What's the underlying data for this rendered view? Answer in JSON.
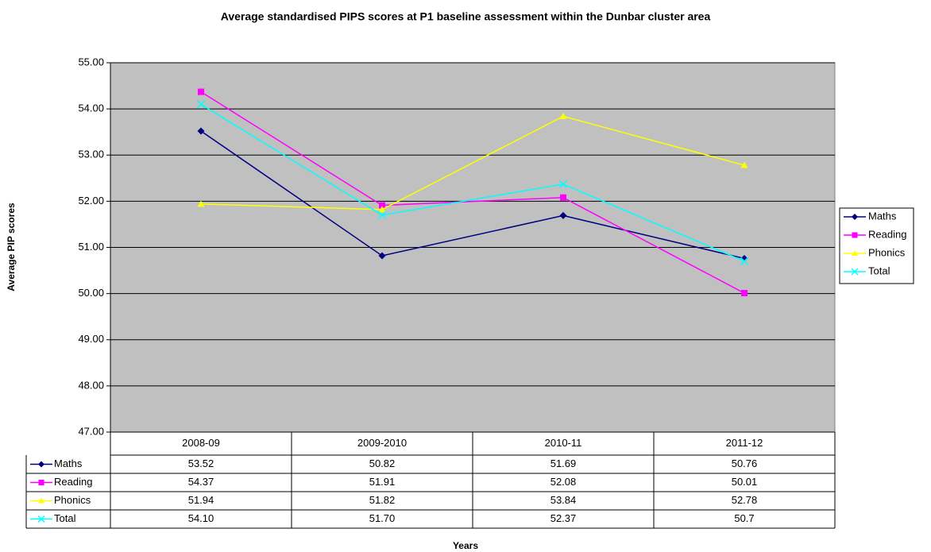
{
  "chart_data": {
    "type": "line",
    "title": "Average standardised PIPS scores at P1 baseline assessment within the Dunbar cluster area",
    "x_label": "Years",
    "y_label": "Average PIP scores",
    "categories": [
      "2008-09",
      "2009-2010",
      "2010-11",
      "2011-12"
    ],
    "series": [
      {
        "name": "Maths",
        "color": "#000080",
        "marker": "diamond",
        "values": [
          53.52,
          50.82,
          51.69,
          50.76
        ]
      },
      {
        "name": "Reading",
        "color": "#ff00ff",
        "marker": "square",
        "values": [
          54.37,
          51.91,
          52.08,
          50.01
        ]
      },
      {
        "name": "Phonics",
        "color": "#ffff00",
        "marker": "triangle",
        "values": [
          51.94,
          51.82,
          53.84,
          52.78
        ]
      },
      {
        "name": "Total",
        "color": "#00ffff",
        "marker": "x",
        "values": [
          54.1,
          51.7,
          52.37,
          50.7
        ],
        "value_labels": [
          "54.10",
          "51.70",
          "52.37",
          "50.7"
        ]
      }
    ],
    "ylim": [
      47,
      55
    ],
    "yticks": [
      {
        "value": 47,
        "label": "47.00"
      },
      {
        "value": 48,
        "label": "48.00"
      },
      {
        "value": 49,
        "label": "49.00"
      },
      {
        "value": 50,
        "label": "50.00"
      },
      {
        "value": 51,
        "label": "51.00"
      },
      {
        "value": 52,
        "label": "52.00"
      },
      {
        "value": 53,
        "label": "53.00"
      },
      {
        "value": 54,
        "label": "54.00"
      },
      {
        "value": 55,
        "label": "55.00"
      }
    ],
    "grid": true,
    "legend": "right",
    "plot_background": "#c0c0c0"
  }
}
